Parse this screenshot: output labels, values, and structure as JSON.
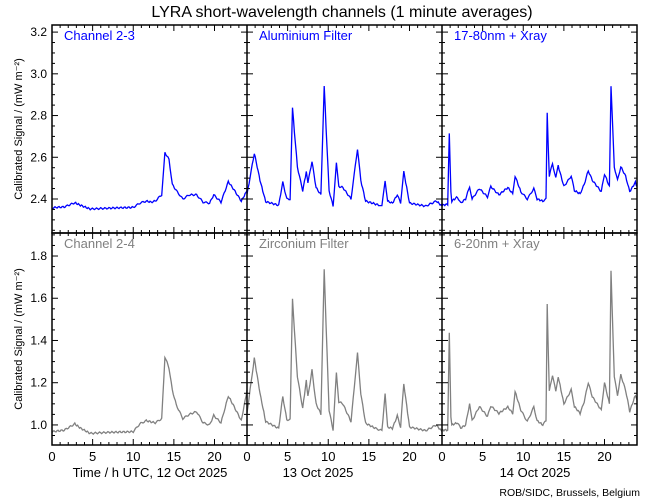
{
  "title": "LYRA short-wavelength channels (1 minute averages)",
  "ylabel": "Calibrated Signal / (mW m⁻²)",
  "x_day_labels": [
    "Time / h UTC, 12 Oct 2025",
    "13 Oct 2025",
    "14 Oct 2025"
  ],
  "credit": "ROB/SIDC, Brussels, Belgium",
  "chart_data": {
    "type": "line",
    "title": "LYRA short-wavelength channels (1 minute averages)",
    "xlabel": "Time / h UTC",
    "ylabel": "Calibrated Signal / (mW m^-2)",
    "days": [
      "12 Oct 2025",
      "13 Oct 2025",
      "14 Oct 2025"
    ],
    "xlim": [
      0,
      24
    ],
    "x_ticks": [
      0,
      5,
      10,
      15,
      20
    ],
    "x_tick_labels": [
      "0",
      "5",
      "10",
      "15",
      "20"
    ],
    "rows": [
      {
        "ylim": [
          2.237,
          3.234
        ],
        "y_ticks": [
          2.4,
          2.6,
          2.8,
          3.0,
          3.2
        ],
        "y_tick_labels": [
          "2.4",
          "2.6",
          "2.8",
          "3.0",
          "3.2"
        ],
        "color": "#0000ff",
        "panels": [
          {
            "label": "Channel 2-3",
            "points": [
              [
                0,
                2.356
              ],
              [
                0.5,
                2.36
              ],
              [
                1.5,
                2.362
              ],
              [
                2.8,
                2.382
              ],
              [
                3.5,
                2.37
              ],
              [
                4.7,
                2.352
              ],
              [
                7,
                2.356
              ],
              [
                10,
                2.36
              ],
              [
                10.8,
                2.38
              ],
              [
                11.6,
                2.39
              ],
              [
                12.2,
                2.385
              ],
              [
                12.7,
                2.39
              ],
              [
                13.5,
                2.42
              ],
              [
                13.9,
                2.622
              ],
              [
                14.4,
                2.59
              ],
              [
                14.8,
                2.47
              ],
              [
                15.3,
                2.44
              ],
              [
                16.1,
                2.4
              ],
              [
                16.9,
                2.42
              ],
              [
                17.8,
                2.42
              ],
              [
                18.6,
                2.385
              ],
              [
                19.4,
                2.38
              ],
              [
                19.9,
                2.42
              ],
              [
                20.8,
                2.385
              ],
              [
                21.7,
                2.483
              ],
              [
                22.3,
                2.45
              ],
              [
                23.3,
                2.39
              ],
              [
                24,
                2.44
              ]
            ]
          },
          {
            "label": "Aluminium Filter",
            "points": [
              [
                0,
                2.42
              ],
              [
                0.9,
                2.62
              ],
              [
                1.6,
                2.49
              ],
              [
                2.3,
                2.387
              ],
              [
                3.9,
                2.37
              ],
              [
                4.4,
                2.48
              ],
              [
                4.9,
                2.4
              ],
              [
                5.3,
                2.4
              ],
              [
                5.6,
                2.835
              ],
              [
                6.2,
                2.555
              ],
              [
                6.85,
                2.44
              ],
              [
                7.3,
                2.53
              ],
              [
                7.5,
                2.48
              ],
              [
                8.0,
                2.58
              ],
              [
                8.5,
                2.455
              ],
              [
                9.1,
                2.42
              ],
              [
                9.5,
                2.94
              ],
              [
                10.1,
                2.44
              ],
              [
                10.6,
                2.366
              ],
              [
                11.0,
                2.57
              ],
              [
                11.3,
                2.46
              ],
              [
                11.8,
                2.455
              ],
              [
                12.8,
                2.4
              ],
              [
                13.6,
                2.64
              ],
              [
                14.0,
                2.49
              ],
              [
                14.6,
                2.39
              ],
              [
                16.3,
                2.37
              ],
              [
                16.6,
                2.365
              ],
              [
                17.0,
                2.49
              ],
              [
                17.3,
                2.39
              ],
              [
                17.9,
                2.38
              ],
              [
                18.5,
                2.42
              ],
              [
                18.9,
                2.38
              ],
              [
                19.3,
                2.53
              ],
              [
                20.0,
                2.38
              ],
              [
                22.0,
                2.366
              ],
              [
                23.3,
                2.39
              ],
              [
                24,
                2.366
              ]
            ]
          },
          {
            "label": "17-80nm + Xray",
            "points": [
              [
                0,
                2.37
              ],
              [
                0.7,
                2.375
              ],
              [
                0.9,
                2.715
              ],
              [
                1.1,
                2.43
              ],
              [
                1.2,
                2.39
              ],
              [
                1.9,
                2.41
              ],
              [
                2.3,
                2.38
              ],
              [
                2.9,
                2.4
              ],
              [
                3.4,
                2.46
              ],
              [
                3.7,
                2.4
              ],
              [
                4.6,
                2.45
              ],
              [
                5.6,
                2.41
              ],
              [
                6.0,
                2.46
              ],
              [
                7.0,
                2.42
              ],
              [
                8.1,
                2.455
              ],
              [
                8.7,
                2.425
              ],
              [
                9.0,
                2.51
              ],
              [
                9.7,
                2.435
              ],
              [
                10.5,
                2.4
              ],
              [
                11.3,
                2.45
              ],
              [
                11.7,
                2.4
              ],
              [
                12.4,
                2.39
              ],
              [
                12.8,
                2.4
              ],
              [
                12.95,
                2.81
              ],
              [
                13.2,
                2.51
              ],
              [
                13.6,
                2.57
              ],
              [
                14.0,
                2.5
              ],
              [
                14.3,
                2.56
              ],
              [
                15.0,
                2.46
              ],
              [
                15.9,
                2.51
              ],
              [
                16.3,
                2.44
              ],
              [
                17.0,
                2.425
              ],
              [
                17.5,
                2.47
              ],
              [
                18.0,
                2.535
              ],
              [
                18.5,
                2.49
              ],
              [
                19.6,
                2.435
              ],
              [
                20.0,
                2.52
              ],
              [
                20.6,
                2.46
              ],
              [
                20.8,
                2.94
              ],
              [
                21.2,
                2.555
              ],
              [
                21.6,
                2.49
              ],
              [
                22.0,
                2.555
              ],
              [
                22.6,
                2.51
              ],
              [
                23.1,
                2.435
              ],
              [
                23.8,
                2.48
              ],
              [
                24,
                2.46
              ]
            ]
          }
        ]
      },
      {
        "ylim": [
          0.905,
          1.909
        ],
        "y_ticks": [
          1.0,
          1.2,
          1.4,
          1.6,
          1.8
        ],
        "y_tick_labels": [
          "1.0",
          "1.2",
          "1.4",
          "1.6",
          "1.8"
        ],
        "color": "#808080",
        "panels": [
          {
            "label": "Channel 2-4",
            "points": [
              [
                0,
                0.968
              ],
              [
                1.5,
                0.975
              ],
              [
                2.8,
                1.005
              ],
              [
                3.5,
                0.985
              ],
              [
                4.7,
                0.96
              ],
              [
                7,
                0.965
              ],
              [
                10,
                0.968
              ],
              [
                10.8,
                1.005
              ],
              [
                11.6,
                1.02
              ],
              [
                12.7,
                1.01
              ],
              [
                13.5,
                1.03
              ],
              [
                13.9,
                1.323
              ],
              [
                14.4,
                1.27
              ],
              [
                14.8,
                1.165
              ],
              [
                15.3,
                1.095
              ],
              [
                16.1,
                1.03
              ],
              [
                16.9,
                1.05
              ],
              [
                17.8,
                1.063
              ],
              [
                18.6,
                1.01
              ],
              [
                19.4,
                1.0
              ],
              [
                19.9,
                1.045
              ],
              [
                20.8,
                1.01
              ],
              [
                21.7,
                1.137
              ],
              [
                22.3,
                1.095
              ],
              [
                23.3,
                1.02
              ],
              [
                24,
                1.165
              ]
            ]
          },
          {
            "label": "Zirconium Filter",
            "points": [
              [
                0,
                1.055
              ],
              [
                0.9,
                1.316
              ],
              [
                1.6,
                1.15
              ],
              [
                2.3,
                1.016
              ],
              [
                3.9,
                0.984
              ],
              [
                4.4,
                1.134
              ],
              [
                4.9,
                1.025
              ],
              [
                5.3,
                1.025
              ],
              [
                5.6,
                1.595
              ],
              [
                6.2,
                1.23
              ],
              [
                6.85,
                1.08
              ],
              [
                7.3,
                1.21
              ],
              [
                7.5,
                1.134
              ],
              [
                8.0,
                1.26
              ],
              [
                8.5,
                1.1
              ],
              [
                9.1,
                1.052
              ],
              [
                9.5,
                1.734
              ],
              [
                10.1,
                1.07
              ],
              [
                10.6,
                0.976
              ],
              [
                11.0,
                1.248
              ],
              [
                11.3,
                1.11
              ],
              [
                11.8,
                1.1
              ],
              [
                12.8,
                1.016
              ],
              [
                13.6,
                1.34
              ],
              [
                14.0,
                1.15
              ],
              [
                14.6,
                1.008
              ],
              [
                15.8,
                0.984
              ],
              [
                16.6,
                0.973
              ],
              [
                17.0,
                1.147
              ],
              [
                17.3,
                0.99
              ],
              [
                17.9,
                0.984
              ],
              [
                18.5,
                1.043
              ],
              [
                18.9,
                0.99
              ],
              [
                19.3,
                1.194
              ],
              [
                20.0,
                0.99
              ],
              [
                22.0,
                0.973
              ],
              [
                23.3,
                1.0
              ],
              [
                24,
                0.968
              ]
            ]
          },
          {
            "label": "6-20nm + Xray",
            "points": [
              [
                0,
                0.976
              ],
              [
                0.7,
                0.976
              ],
              [
                0.9,
                1.44
              ],
              [
                1.1,
                1.04
              ],
              [
                1.2,
                1.0
              ],
              [
                1.9,
                1.01
              ],
              [
                2.3,
                0.985
              ],
              [
                2.9,
                1.0
              ],
              [
                3.4,
                1.1
              ],
              [
                3.7,
                1.02
              ],
              [
                4.6,
                1.087
              ],
              [
                5.6,
                1.04
              ],
              [
                6.0,
                1.09
              ],
              [
                7.0,
                1.055
              ],
              [
                8.1,
                1.085
              ],
              [
                8.7,
                1.055
              ],
              [
                9.0,
                1.158
              ],
              [
                9.7,
                1.07
              ],
              [
                10.5,
                1.016
              ],
              [
                11.3,
                1.085
              ],
              [
                11.7,
                1.02
              ],
              [
                12.4,
                1.0
              ],
              [
                12.8,
                1.02
              ],
              [
                12.95,
                1.576
              ],
              [
                13.2,
                1.158
              ],
              [
                13.6,
                1.237
              ],
              [
                14.0,
                1.158
              ],
              [
                14.3,
                1.23
              ],
              [
                15.0,
                1.1
              ],
              [
                15.9,
                1.166
              ],
              [
                16.3,
                1.087
              ],
              [
                17.0,
                1.055
              ],
              [
                17.5,
                1.11
              ],
              [
                18.0,
                1.2
              ],
              [
                18.5,
                1.134
              ],
              [
                19.6,
                1.07
              ],
              [
                20.0,
                1.2
              ],
              [
                20.6,
                1.1
              ],
              [
                20.8,
                1.726
              ],
              [
                21.2,
                1.23
              ],
              [
                21.6,
                1.14
              ],
              [
                22.0,
                1.237
              ],
              [
                22.6,
                1.165
              ],
              [
                23.1,
                1.064
              ],
              [
                23.8,
                1.14
              ],
              [
                24,
                1.118
              ]
            ]
          }
        ]
      }
    ]
  }
}
